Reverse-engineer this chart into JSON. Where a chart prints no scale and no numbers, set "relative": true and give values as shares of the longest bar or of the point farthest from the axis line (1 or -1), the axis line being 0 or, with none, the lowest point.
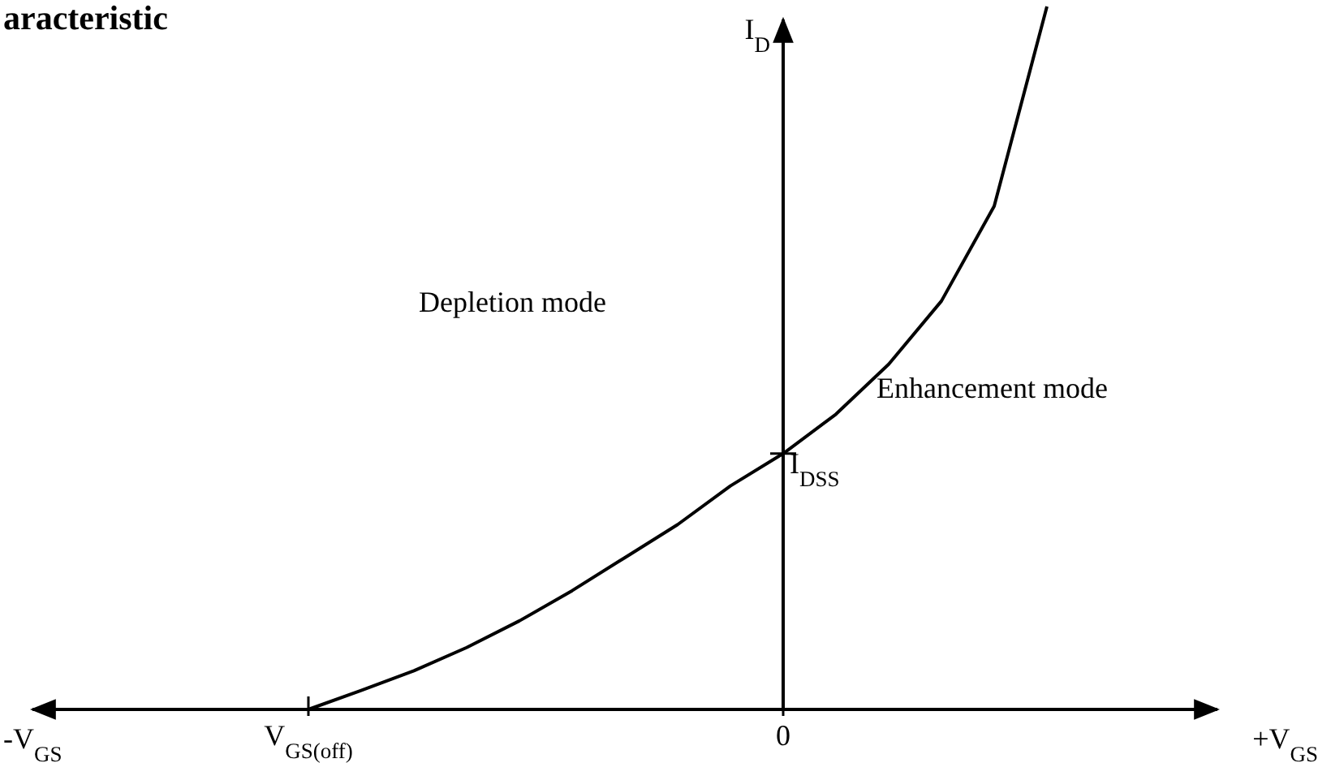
{
  "chart_data": {
    "type": "line",
    "title": "aracteristic",
    "ylabel": "I$_{D}$",
    "relative": true,
    "categories": [
      "V$_{GS(off)}$",
      null,
      null,
      null,
      null,
      null,
      null,
      null,
      null,
      "0",
      null,
      null,
      null,
      null,
      null
    ],
    "values": [
      0,
      0.027,
      0.055,
      0.088,
      0.126,
      0.169,
      0.216,
      0.263,
      0.318,
      0.364,
      0.42,
      0.491,
      0.581,
      0.716,
      1
    ],
    "color": "#000000",
    "annotations": [
      "Depletion mode",
      "Enhancement mode",
      "-V$_{GS}$",
      "+V$_{GS}$",
      {
        "text": "I$_{DSS}$",
        "x": "0",
        "y": 0.364
      }
    ]
  }
}
